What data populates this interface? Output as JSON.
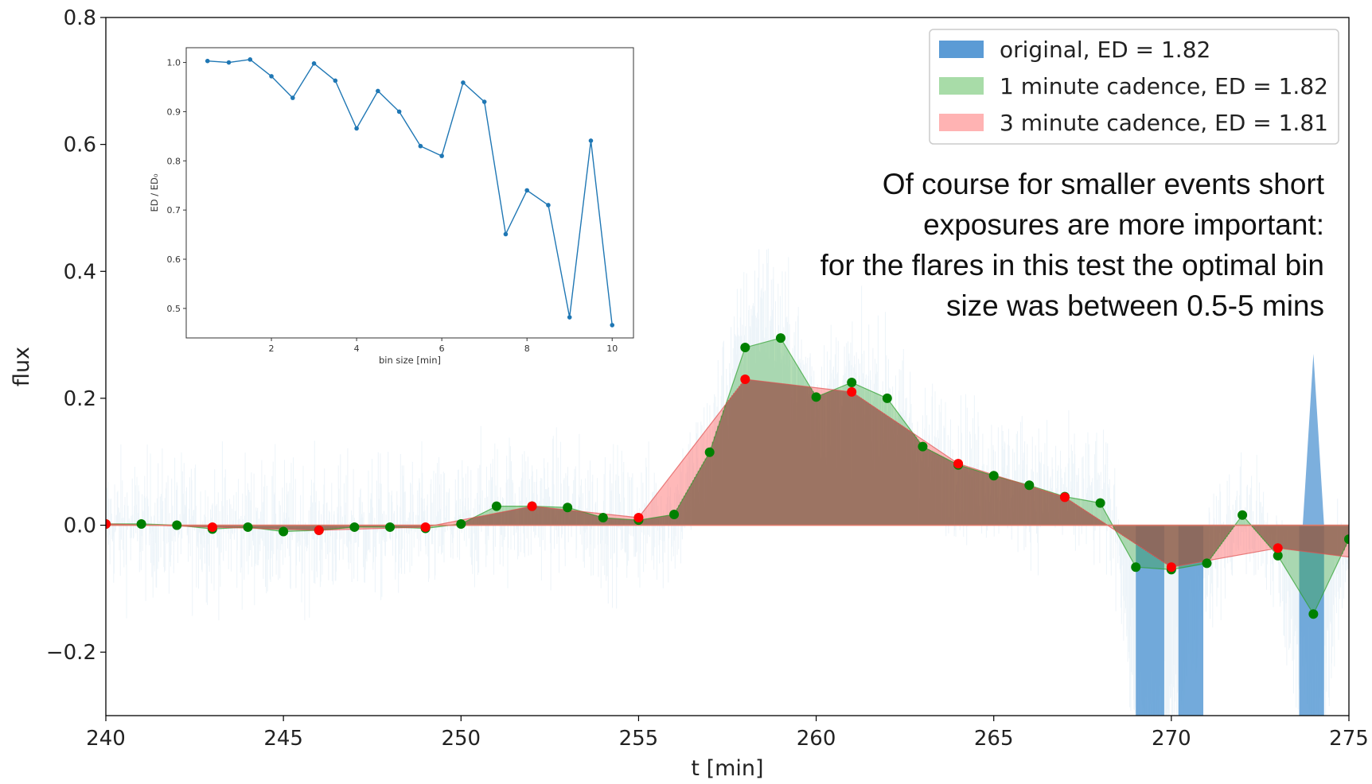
{
  "chart_data": {
    "type": "area",
    "xlabel": "t [min]",
    "ylabel": "flux",
    "xlim": [
      240,
      275
    ],
    "ylim": [
      -0.3,
      0.8
    ],
    "xticks": [
      240,
      245,
      250,
      255,
      260,
      265,
      270,
      275
    ],
    "xtick_labels": [
      "240",
      "245",
      "250",
      "255",
      "260",
      "265",
      "270",
      "275"
    ],
    "yticks": [
      -0.2,
      0.0,
      0.2,
      0.4,
      0.6,
      0.8
    ],
    "ytick_labels": [
      "−0.2",
      "0.0",
      "0.2",
      "0.4",
      "0.6",
      "0.8"
    ],
    "grid": false,
    "legend_position": "top-right",
    "series": [
      {
        "name": "original, ED = 1.82",
        "color": "#1f77b4",
        "style": "dense high-cadence fill to zero",
        "x": [
          240,
          241,
          242,
          243,
          244,
          245,
          246,
          247,
          248,
          249,
          250,
          251,
          252,
          253,
          254,
          255,
          256,
          257,
          257.5,
          258,
          258.5,
          259,
          259.5,
          260,
          261,
          262,
          263,
          264,
          265,
          266,
          267,
          268,
          268.5,
          269,
          269.5,
          270,
          271,
          272,
          273,
          274,
          275
        ],
        "y": [
          0.0,
          0.0,
          0.0,
          -0.005,
          -0.005,
          -0.01,
          -0.01,
          -0.005,
          -0.005,
          -0.005,
          0.0,
          0.03,
          0.03,
          0.025,
          0.01,
          0.005,
          0.015,
          0.12,
          0.22,
          0.3,
          0.36,
          0.3,
          0.25,
          0.2,
          0.22,
          0.2,
          0.12,
          0.095,
          0.078,
          0.063,
          0.045,
          0.035,
          0.0,
          -0.3,
          -0.3,
          -0.3,
          -0.06,
          0.015,
          -0.05,
          -0.3,
          -0.02
        ]
      },
      {
        "name": "1 minute cadence, ED = 1.82",
        "color": "#2ca02c",
        "marker_color": "#008000",
        "x": [
          240,
          241,
          242,
          243,
          244,
          245,
          246,
          247,
          248,
          249,
          250,
          251,
          252,
          253,
          254,
          255,
          256,
          257,
          258,
          259,
          260,
          261,
          262,
          263,
          264,
          265,
          266,
          267,
          268,
          269,
          270,
          271,
          272,
          273,
          274,
          275
        ],
        "y": [
          0.002,
          0.002,
          0.0,
          -0.006,
          -0.003,
          -0.01,
          -0.008,
          -0.003,
          -0.003,
          -0.005,
          0.002,
          0.03,
          0.03,
          0.028,
          0.012,
          0.008,
          0.017,
          0.115,
          0.28,
          0.295,
          0.202,
          0.225,
          0.2,
          0.124,
          0.095,
          0.078,
          0.063,
          0.045,
          0.035,
          -0.066,
          -0.07,
          -0.06,
          0.016,
          -0.048,
          -0.14,
          -0.022
        ]
      },
      {
        "name": "3 minute cadence, ED = 1.81",
        "color": "#ff0000",
        "fill_color": "#ff7f7f",
        "x": [
          240,
          243,
          246,
          249,
          252,
          255,
          258,
          261,
          264,
          267,
          270,
          273,
          275
        ],
        "y": [
          0.002,
          -0.003,
          -0.008,
          -0.003,
          0.03,
          0.012,
          0.23,
          0.21,
          0.097,
          0.044,
          -0.066,
          -0.036,
          -0.05
        ]
      }
    ],
    "legend": [
      {
        "label": "original, ED = 1.82",
        "color": "#5b9bd5"
      },
      {
        "label": "1 minute cadence, ED = 1.82",
        "color": "#a8dca8"
      },
      {
        "label": "3 minute cadence, ED = 1.81",
        "color": "#ffb3b3"
      }
    ],
    "annotation": [
      "Of course for smaller events short",
      "exposures are more important:",
      "for the flares in this test the optimal bin",
      "size was between 0.5-5 mins"
    ],
    "inset": {
      "type": "line",
      "xlabel": "bin size [min]",
      "ylabel": "ED / ED₀",
      "xlim": [
        0,
        10.5
      ],
      "ylim": [
        0.44,
        1.03
      ],
      "xticks": [
        2,
        4,
        6,
        8,
        10
      ],
      "yticks": [
        0.5,
        0.6,
        0.7,
        0.8,
        0.9,
        1.0
      ],
      "ytick_labels": [
        "0.5",
        "0.6",
        "0.7",
        "0.8",
        "0.9",
        "1.0"
      ],
      "color": "#1f77b4",
      "x": [
        0.5,
        1.0,
        1.5,
        2.0,
        2.5,
        3.0,
        3.5,
        4.0,
        4.5,
        5.0,
        5.5,
        6.0,
        6.5,
        7.0,
        7.5,
        8.0,
        8.5,
        9.0,
        9.5,
        10.0
      ],
      "y": [
        1.003,
        1.0,
        1.006,
        0.972,
        0.928,
        0.998,
        0.963,
        0.866,
        0.942,
        0.9,
        0.83,
        0.81,
        0.959,
        0.92,
        0.651,
        0.74,
        0.71,
        0.482,
        0.841,
        0.466
      ]
    }
  }
}
